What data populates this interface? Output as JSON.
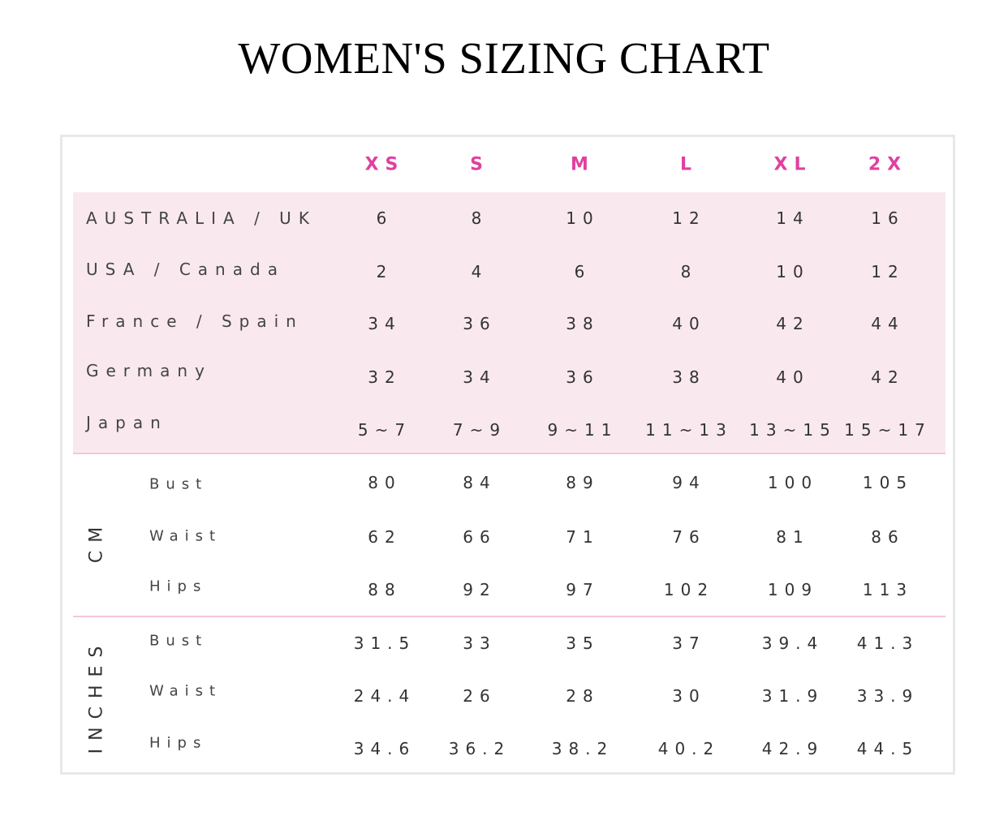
{
  "title": "WOMEN'S SIZING CHART",
  "sizes": [
    "XS",
    "S",
    "M",
    "L",
    "XL",
    "2X"
  ],
  "regions": [
    {
      "label": "AUSTRALIA / UK",
      "values": [
        "6",
        "8",
        "10",
        "12",
        "14",
        "16"
      ]
    },
    {
      "label": "USA / Canada",
      "values": [
        "2",
        "4",
        "6",
        "8",
        "10",
        "12"
      ]
    },
    {
      "label": "France / Spain",
      "values": [
        "34",
        "36",
        "38",
        "40",
        "42",
        "44"
      ]
    },
    {
      "label": "Germany",
      "values": [
        "32",
        "34",
        "36",
        "38",
        "40",
        "42"
      ]
    },
    {
      "label": "Japan",
      "values": [
        "5~7",
        "7~9",
        "9~11",
        "11~13",
        "13~15",
        "15~17"
      ]
    }
  ],
  "cm": {
    "label": "CM",
    "rows": [
      {
        "label": "Bust",
        "values": [
          "80",
          "84",
          "89",
          "94",
          "100",
          "105"
        ]
      },
      {
        "label": "Waist",
        "values": [
          "62",
          "66",
          "71",
          "76",
          "81",
          "86"
        ]
      },
      {
        "label": "Hips",
        "values": [
          "88",
          "92",
          "97",
          "102",
          "109",
          "113"
        ]
      }
    ]
  },
  "inches": {
    "label": "INCHES",
    "rows": [
      {
        "label": "Bust",
        "values": [
          "31.5",
          "33",
          "35",
          "37",
          "39.4",
          "41.3"
        ]
      },
      {
        "label": "Waist",
        "values": [
          "24.4",
          "26",
          "28",
          "30",
          "31.9",
          "33.9"
        ]
      },
      {
        "label": "Hips",
        "values": [
          "34.6",
          "36.2",
          "38.2",
          "40.2",
          "42.9",
          "44.5"
        ]
      }
    ]
  },
  "colors": {
    "size_header": "#e040a0",
    "band": "#f9e9ef",
    "divider": "#f3c6dd"
  }
}
